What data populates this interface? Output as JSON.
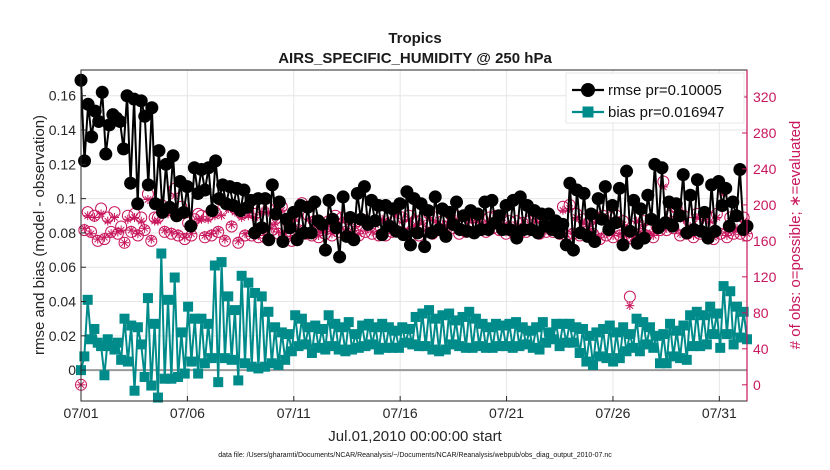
{
  "chart_data": {
    "type": "line",
    "title": "Tropics",
    "subtitle": "AIRS_SPECIFIC_HUMIDITY @ 250 hPa",
    "xlabel": "Jul.01,2010 00:00:00 start",
    "ylabel": "rmse and bias (model - observation)",
    "ylabel_right": "# of obs: o=possible; ∗=evaluated",
    "ylim": [
      -0.018,
      0.175
    ],
    "ylim_right": [
      -18,
      350
    ],
    "xlim": [
      1,
      32.3
    ],
    "x_ticks": [
      {
        "x": 1,
        "label": "07/01"
      },
      {
        "x": 6,
        "label": "07/06"
      },
      {
        "x": 11,
        "label": "07/11"
      },
      {
        "x": 16,
        "label": "07/16"
      },
      {
        "x": 21,
        "label": "07/21"
      },
      {
        "x": 26,
        "label": "07/26"
      },
      {
        "x": 31,
        "label": "07/31"
      }
    ],
    "y_ticks": [
      {
        "v": 0,
        "label": "0"
      },
      {
        "v": 0.02,
        "label": "0.02"
      },
      {
        "v": 0.04,
        "label": "0.04"
      },
      {
        "v": 0.06,
        "label": "0.06"
      },
      {
        "v": 0.08,
        "label": "0.08"
      },
      {
        "v": 0.1,
        "label": "0.1"
      },
      {
        "v": 0.12,
        "label": "0.12"
      },
      {
        "v": 0.14,
        "label": "0.14"
      },
      {
        "v": 0.16,
        "label": "0.16"
      }
    ],
    "y_ticks_right": [
      {
        "v": 0,
        "label": "0"
      },
      {
        "v": 40,
        "label": "40"
      },
      {
        "v": 80,
        "label": "80"
      },
      {
        "v": 120,
        "label": "120"
      },
      {
        "v": 160,
        "label": "160"
      },
      {
        "v": 200,
        "label": "200"
      },
      {
        "v": 240,
        "label": "240"
      },
      {
        "v": 280,
        "label": "280"
      },
      {
        "v": 320,
        "label": "320"
      }
    ],
    "series": [
      {
        "name": "rmse",
        "legend": "rmse pr=0.10005",
        "color": "#000000",
        "values": [
          0.169,
          0.122,
          0.155,
          0.136,
          0.151,
          0.145,
          0.162,
          0.126,
          0.143,
          0.149,
          0.147,
          0.145,
          0.129,
          0.16,
          0.109,
          0.158,
          0.097,
          0.157,
          0.148,
          0.108,
          0.153,
          0.097,
          0.128,
          0.092,
          0.12,
          0.095,
          0.125,
          0.09,
          0.11,
          0.092,
          0.107,
          0.084,
          0.118,
          0.103,
          0.117,
          0.105,
          0.118,
          0.093,
          0.122,
          0.1,
          0.108,
          0.097,
          0.107,
          0.096,
          0.106,
          0.093,
          0.105,
          0.095,
          0.099,
          0.08,
          0.1,
          0.083,
          0.1,
          0.076,
          0.108,
          0.091,
          0.098,
          0.075,
          0.088,
          0.083,
          0.092,
          0.076,
          0.096,
          0.08,
          0.095,
          0.08,
          0.098,
          0.087,
          0.085,
          0.07,
          0.099,
          0.088,
          0.083,
          0.066,
          0.101,
          0.078,
          0.089,
          0.076,
          0.103,
          0.088,
          0.107,
          0.085,
          0.099,
          0.087,
          0.096,
          0.079,
          0.096,
          0.084,
          0.094,
          0.081,
          0.097,
          0.079,
          0.104,
          0.073,
          0.1,
          0.08,
          0.097,
          0.072,
          0.093,
          0.08,
          0.101,
          0.082,
          0.094,
          0.078,
          0.092,
          0.085,
          0.098,
          0.082,
          0.09,
          0.081,
          0.093,
          0.08,
          0.091,
          0.082,
          0.098,
          0.082,
          0.099,
          0.086,
          0.09,
          0.082,
          0.096,
          0.082,
          0.099,
          0.077,
          0.101,
          0.082,
          0.096,
          0.082,
          0.093,
          0.08,
          0.091,
          0.084,
          0.091,
          0.082,
          0.087,
          0.08,
          0.085,
          0.073,
          0.109,
          0.07,
          0.105,
          0.08,
          0.103,
          0.078,
          0.091,
          0.075,
          0.1,
          0.088,
          0.107,
          0.082,
          0.096,
          0.086,
          0.106,
          0.073,
          0.116,
          0.081,
          0.099,
          0.074,
          0.094,
          0.077,
          0.102,
          0.088,
          0.12,
          0.083,
          0.118,
          0.086,
          0.098,
          0.084,
          0.097,
          0.09,
          0.114,
          0.08,
          0.102,
          0.082,
          0.111,
          0.081,
          0.092,
          0.077,
          0.108,
          0.081,
          0.11,
          0.096,
          0.106,
          0.084,
          0.098,
          0.09,
          0.117,
          0.082,
          0.084
        ]
      },
      {
        "name": "bias",
        "legend": "bias pr=0.016947",
        "color": "#008b8b",
        "values": [
          0,
          0.008,
          0.041,
          0.018,
          0.024,
          0.016,
          0.014,
          -0.003,
          0.018,
          0.014,
          0.012,
          0.016,
          0.006,
          0.03,
          0.005,
          0.026,
          -0.012,
          0.025,
          0.015,
          -0.004,
          0.042,
          -0.009,
          0.027,
          -0.016,
          0.068,
          -0.005,
          0.041,
          -0.005,
          0.054,
          -0.004,
          0.022,
          -0.002,
          0.037,
          0.005,
          0.03,
          -0.002,
          0.03,
          0.004,
          0.027,
          0.007,
          0.061,
          -0.007,
          0.063,
          0.007,
          0.043,
          0.006,
          0.035,
          -0.006,
          0.055,
          0.004,
          0.051,
          0.002,
          0.045,
          0.001,
          0.043,
          0.002,
          0.034,
          0.004,
          0.025,
          0.003,
          0.022,
          0.006,
          0.021,
          0.011,
          0.032,
          0.014,
          0.03,
          0.015,
          0.025,
          0.01,
          0.026,
          0.013,
          0.024,
          0.012,
          0.032,
          0.014,
          0.027,
          0.012,
          0.025,
          0.011,
          0.028,
          0.012,
          0.021,
          0.013,
          0.026,
          0.014,
          0.027,
          0.015,
          0.025,
          0.012,
          0.027,
          0.013,
          0.025,
          0.013,
          0.023,
          0.013,
          0.025,
          0.016,
          0.024,
          0.015,
          0.031,
          0.014,
          0.033,
          0.014,
          0.035,
          0.012,
          0.03,
          0.011,
          0.032,
          0.012,
          0.033,
          0.015,
          0.029,
          0.014,
          0.031,
          0.013,
          0.034,
          0.013,
          0.03,
          0.014,
          0.027,
          0.013,
          0.025,
          0.013,
          0.027,
          0.014,
          0.026,
          0.014,
          0.027,
          0.013,
          0.028,
          0.014,
          0.025,
          0.015,
          0.023,
          0.013,
          0.025,
          0.012,
          0.028,
          0.016,
          0.022,
          0.018,
          0.027,
          0.014,
          0.027,
          0.016,
          0.027,
          0.016,
          0.025,
          0.01,
          0.024,
          0.005,
          0.02,
          0.003,
          0.022,
          0.008,
          0.024,
          0.007,
          0.026,
          0.005,
          0.022,
          0.007,
          0.025,
          0.011,
          0.021,
          0.013,
          0.03,
          0.011,
          0.028,
          0.015,
          0.025,
          0.013,
          0.02,
          0.004,
          0.021,
          0.004,
          0.027,
          0.008,
          0.023,
          0.007,
          0.026,
          0.006,
          0.032,
          0.014,
          0.034,
          0.014,
          0.032,
          0.015,
          0.037,
          0.021,
          0.033,
          0.013,
          0.049,
          0.021,
          0.046,
          0.015,
          0.037,
          0.019,
          0.034,
          0.018
        ]
      },
      {
        "name": "obs_possible",
        "axis": "right",
        "marker": "o",
        "color": "#c8175d",
        "values": [
          0,
          172,
          192,
          170,
          188,
          160,
          196,
          162,
          186,
          170,
          192,
          168,
          176,
          158,
          188,
          170,
          190,
          166,
          186,
          172,
          212,
          160,
          186,
          186,
          200,
          170,
          194,
          168,
          218,
          166,
          198,
          162,
          180,
          166,
          184,
          190,
          188,
          164,
          188,
          166,
          192,
          170,
          194,
          160,
          200,
          176,
          196,
          158,
          190,
          166,
          192,
          166,
          190,
          164,
          196,
          164,
          196,
          172,
          184,
          168,
          198,
          166,
          180,
          160,
          188,
          172,
          202,
          168,
          188,
          166,
          182,
          164,
          176,
          168,
          182,
          166,
          188,
          170,
          186,
          170,
          184,
          164,
          180,
          166,
          184,
          170,
          180,
          168,
          182,
          166,
          188,
          166,
          186,
          170,
          194,
          170,
          186,
          168,
          188,
          172,
          182,
          166,
          184,
          170,
          190,
          168,
          186,
          172,
          182,
          170,
          186,
          174,
          188,
          168,
          176,
          170,
          186,
          170,
          186,
          172,
          184,
          170,
          186,
          174,
          188,
          172,
          184,
          168,
          182,
          170,
          182,
          168,
          180,
          170,
          182,
          172,
          186,
          168,
          184,
          170,
          180,
          170,
          182,
          168,
          198,
          166,
          200,
          168,
          190,
          166,
          184,
          170,
          182,
          168,
          186,
          162,
          188,
          166,
          186,
          164,
          188,
          166,
          182,
          164,
          98,
          162,
          186,
          168,
          182,
          166,
          172,
          164,
          176,
          172,
          226,
          172,
          188,
          174,
          196,
          166,
          188,
          168,
          180,
          164,
          190,
          168,
          188,
          166,
          186,
          162,
          190,
          168,
          218,
          164,
          186,
          168,
          178,
          168,
          186,
          166
        ]
      },
      {
        "name": "obs_evaluated",
        "axis": "right",
        "marker": "*",
        "color": "#c8175d",
        "values": [
          0,
          174,
          188,
          168,
          186,
          162,
          190,
          164,
          182,
          168,
          186,
          170,
          172,
          158,
          184,
          172,
          186,
          168,
          182,
          174,
          206,
          162,
          182,
          182,
          196,
          172,
          190,
          170,
          210,
          168,
          192,
          164,
          176,
          168,
          180,
          184,
          184,
          166,
          184,
          168,
          188,
          172,
          188,
          162,
          196,
          178,
          192,
          160,
          186,
          168,
          188,
          168,
          186,
          166,
          192,
          166,
          192,
          174,
          180,
          170,
          194,
          168,
          176,
          162,
          184,
          174,
          196,
          170,
          184,
          168,
          178,
          166,
          172,
          170,
          178,
          168,
          184,
          172,
          182,
          172,
          180,
          166,
          176,
          168,
          180,
          172,
          176,
          170,
          178,
          168,
          184,
          168,
          182,
          172,
          190,
          172,
          182,
          170,
          184,
          174,
          178,
          168,
          180,
          172,
          186,
          170,
          182,
          174,
          178,
          172,
          182,
          176,
          184,
          170,
          172,
          172,
          182,
          172,
          182,
          174,
          180,
          172,
          182,
          176,
          184,
          174,
          180,
          170,
          178,
          172,
          178,
          170,
          176,
          172,
          178,
          174,
          182,
          170,
          180,
          172,
          176,
          172,
          178,
          170,
          194,
          168,
          196,
          170,
          186,
          168,
          180,
          172,
          178,
          170,
          182,
          164,
          184,
          168,
          182,
          166,
          184,
          168,
          178,
          166,
          88,
          164,
          182,
          170,
          178,
          168,
          168,
          166,
          172,
          174,
          220,
          174,
          184,
          176,
          192,
          168,
          184,
          170,
          176,
          166,
          186,
          170,
          184,
          168,
          182,
          164,
          186,
          170,
          212,
          166,
          182,
          170,
          174,
          170,
          182,
          168
        ]
      }
    ],
    "footnote": "data file: /Users/gharamti/Documents/NCAR/Reanalysis/~/Documents/NCAR/Reanalysis/webpub/obs_diag_output_2010-07.nc"
  }
}
